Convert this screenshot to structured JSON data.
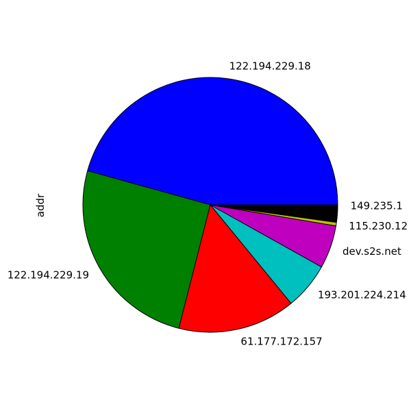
{
  "chart_data": {
    "type": "pie",
    "ylabel": "addr",
    "start_angle_deg": 0,
    "direction": "counterclockwise",
    "slices": [
      {
        "label": "122.194.229.18",
        "value": 46.0,
        "color": "#0000ff"
      },
      {
        "label": "122.194.229.19",
        "value": 25.5,
        "color": "#008000"
      },
      {
        "label": "61.177.172.157",
        "value": 15.0,
        "color": "#ff0000"
      },
      {
        "label": "193.201.224.214",
        "value": 6.0,
        "color": "#00bfbf"
      },
      {
        "label": "dev.s2s.net",
        "value": 5.5,
        "color": "#bf00bf"
      },
      {
        "label": "115.230.12",
        "value": 0.45,
        "color": "#bfbf00"
      },
      {
        "label": "",
        "value": 0.22,
        "color": "#000000"
      },
      {
        "label": "",
        "value": 0.22,
        "color": "#000000"
      },
      {
        "label": "",
        "value": 0.22,
        "color": "#000000"
      },
      {
        "label": "",
        "value": 0.22,
        "color": "#000000"
      },
      {
        "label": "",
        "value": 0.22,
        "color": "#000000"
      },
      {
        "label": "",
        "value": 0.22,
        "color": "#000000"
      },
      {
        "label": "",
        "value": 0.22,
        "color": "#000000"
      },
      {
        "label": "",
        "value": 0.22,
        "color": "#000000"
      },
      {
        "label": "",
        "value": 0.22,
        "color": "#000000"
      },
      {
        "label": "149.235.1",
        "value": 0.23,
        "color": "#000000"
      }
    ]
  }
}
